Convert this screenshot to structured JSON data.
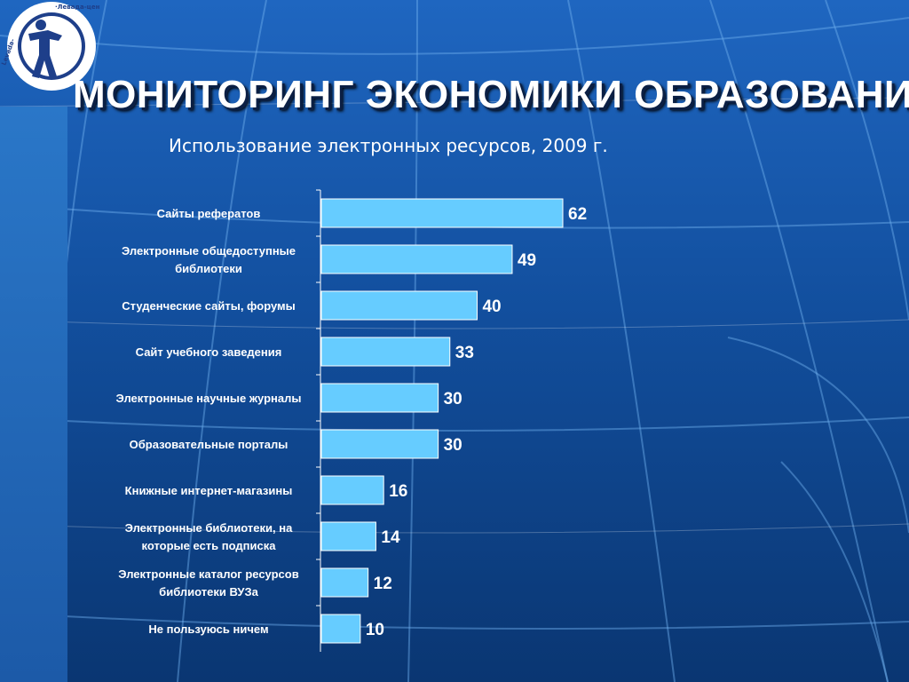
{
  "slide": {
    "title": "МОНИТОРИНГ ЭКОНОМИКИ ОБРАЗОВАНИЯ",
    "logo_text": "Левада-Центр · Levada-center"
  },
  "chart_data": {
    "type": "bar",
    "orientation": "horizontal",
    "title": "Использование электронных ресурсов, 2009 г.",
    "categories": [
      "Сайты рефератов",
      "Электронные общедоступные библиотеки",
      "Студенческие сайты, форумы",
      "Сайт учебного заведения",
      "Электронные научные журналы",
      "Образовательные порталы",
      "Книжные интернет-магазины",
      "Электронные библиотеки, на которые есть подписка",
      "Электронные каталог ресурсов библиотеки ВУЗа",
      "Не пользуюсь ничем"
    ],
    "values": [
      62,
      49,
      40,
      33,
      30,
      30,
      16,
      14,
      12,
      10
    ],
    "xlim": [
      0,
      62
    ],
    "bar_color": "#66ccff",
    "bar_edge_color": "#ffffff",
    "data_labels": true,
    "grid": false,
    "legend": "none"
  },
  "colors": {
    "background": "#124f9e",
    "text": "#ffffff",
    "bar": "#66ccff"
  }
}
